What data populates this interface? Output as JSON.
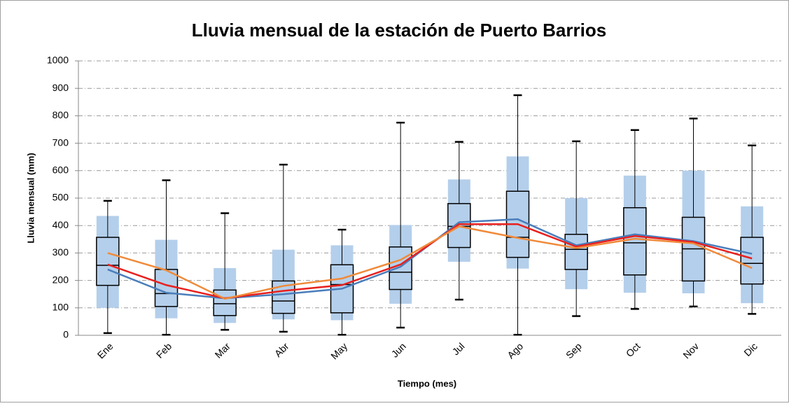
{
  "chart_data": {
    "type": "box",
    "title": "Lluvia mensual de la estación de Puerto Barrios",
    "xlabel": "Tiempo (mes)",
    "ylabel": "Lluvia mensual (mm)",
    "categories": [
      "Ene",
      "Feb",
      "Mar",
      "Abr",
      "May",
      "Jun",
      "Jul",
      "Ago",
      "Sep",
      "Oct",
      "Nov",
      "Dic"
    ],
    "ylim": [
      0,
      1000
    ],
    "yticks": [
      0,
      100,
      200,
      300,
      400,
      500,
      600,
      700,
      800,
      900,
      1000
    ],
    "grid": true,
    "bands": {
      "color": "#b4cfeb",
      "low": [
        100,
        62,
        45,
        58,
        55,
        115,
        268,
        243,
        168,
        155,
        153,
        117
      ],
      "high": [
        435,
        348,
        245,
        312,
        328,
        402,
        568,
        652,
        500,
        582,
        600,
        470
      ]
    },
    "boxes": {
      "color": "#000000",
      "min": [
        8,
        2,
        20,
        13,
        2,
        28,
        130,
        2,
        70,
        96,
        105,
        78
      ],
      "q1": [
        182,
        105,
        72,
        80,
        82,
        167,
        320,
        284,
        240,
        220,
        198,
        187
      ],
      "median": [
        255,
        152,
        115,
        125,
        185,
        230,
        397,
        357,
        313,
        337,
        315,
        262
      ],
      "q3": [
        357,
        240,
        165,
        198,
        257,
        322,
        480,
        525,
        368,
        465,
        430,
        357
      ],
      "max": [
        490,
        565,
        445,
        622,
        385,
        775,
        705,
        875,
        707,
        748,
        790,
        692
      ]
    },
    "lines": [
      {
        "color": "#4a7ebb",
        "values": [
          240,
          155,
          135,
          150,
          170,
          250,
          412,
          423,
          328,
          368,
          343,
          297
        ]
      },
      {
        "color": "#e8201e",
        "values": [
          258,
          183,
          135,
          162,
          183,
          258,
          405,
          405,
          323,
          362,
          340,
          280
        ]
      },
      {
        "color": "#f08a3a",
        "values": [
          300,
          237,
          133,
          180,
          207,
          275,
          397,
          355,
          318,
          352,
          335,
          245
        ]
      }
    ]
  }
}
